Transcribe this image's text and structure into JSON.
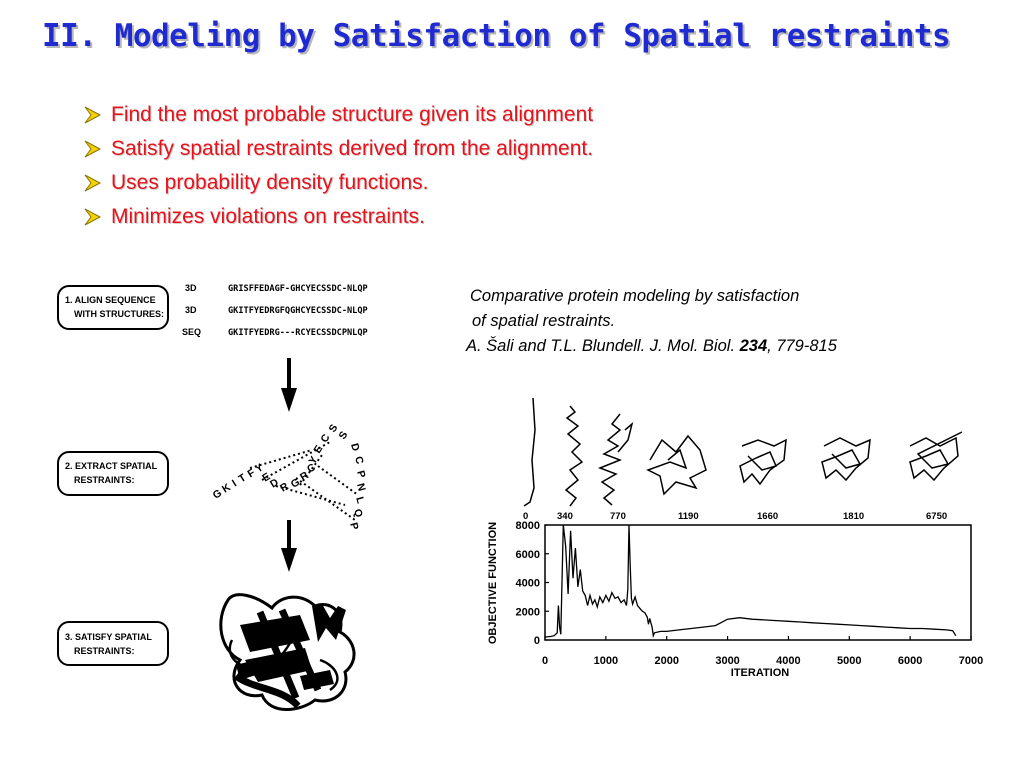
{
  "title": "II. Modeling by Satisfaction of Spatial restraints",
  "bullets": [
    "Find the most probable structure given its alignment",
    "Satisfy spatial restraints derived from the alignment.",
    "Uses  probability density functions.",
    "Minimizes violations on restraints."
  ],
  "citation": {
    "line1": "Comparative protein modeling by satisfaction",
    "line2": "of spatial restraints.",
    "line3_prefix": "A. Šali and T.L. Blundell. J. Mol. Biol. ",
    "volume": "234",
    "pages": ", 779-815"
  },
  "steps": [
    {
      "line1": "1. ALIGN SEQUENCE",
      "line2": "WITH STRUCTURES:"
    },
    {
      "line1": "2. EXTRACT SPATIAL",
      "line2": "RESTRAINTS:"
    },
    {
      "line1": "3. SATISFY SPATIAL",
      "line2": "RESTRAINTS:"
    }
  ],
  "alignment": [
    {
      "label": "3D",
      "sequence": "GRISFFEDAGF-GHCYECSSDC-NLQP"
    },
    {
      "label": "3D",
      "sequence": "GKITFYEDRGFQGHCYECSSDC-NLQP"
    },
    {
      "label": "SEQ",
      "sequence": "GKITFYEDRG---RCYECSSDCPNLQP"
    }
  ],
  "restraint_chain": "GKITFYEDRGRCYECSSDCPNLQP",
  "snapshot_iterations": [
    "0",
    "340",
    "770",
    "1190",
    "1660",
    "1810",
    "6750"
  ],
  "chart_data": {
    "type": "line",
    "xlabel": "ITERATION",
    "ylabel": "OBJECTIVE FUNCTION",
    "xlim": [
      0,
      7000
    ],
    "ylim": [
      0,
      8000
    ],
    "xticks": [
      "0",
      "1000",
      "2000",
      "3000",
      "4000",
      "5000",
      "6000",
      "7000"
    ],
    "yticks": [
      "0",
      "2000",
      "4000",
      "6000",
      "8000"
    ],
    "series": [
      {
        "x": [
          0,
          100,
          150,
          200,
          220,
          240,
          260,
          300,
          340,
          380,
          420,
          460,
          500,
          540,
          580,
          620,
          660,
          700,
          740,
          780,
          820,
          860,
          900,
          950,
          1000,
          1050,
          1100,
          1150,
          1200,
          1250,
          1300,
          1340,
          1360,
          1380,
          1400,
          1420,
          1440,
          1480,
          1520,
          1560,
          1600,
          1640,
          1680,
          1700,
          1720,
          1760,
          1780,
          1800,
          1900,
          2000,
          2200,
          2400,
          2600,
          2800,
          3000,
          3200,
          3400,
          3600,
          3800,
          4000,
          4200,
          4400,
          4600,
          4800,
          5000,
          5200,
          5400,
          5600,
          5800,
          6000,
          6200,
          6400,
          6600,
          6700,
          6750
        ],
        "values": [
          200,
          250,
          300,
          500,
          2400,
          900,
          400,
          8000,
          6500,
          3200,
          7600,
          4300,
          6400,
          3700,
          4900,
          3400,
          3100,
          2400,
          3100,
          2500,
          2800,
          2300,
          3000,
          2600,
          3100,
          2700,
          3300,
          2900,
          3000,
          2600,
          2800,
          2400,
          3500,
          8000,
          5200,
          2900,
          2500,
          3000,
          2400,
          2200,
          2000,
          1900,
          1600,
          1100,
          1500,
          900,
          300,
          500,
          600,
          600,
          700,
          800,
          900,
          1000,
          1450,
          1550,
          1450,
          1400,
          1350,
          1300,
          1250,
          1200,
          1150,
          1100,
          1050,
          1000,
          950,
          900,
          850,
          800,
          800,
          750,
          700,
          650,
          300
        ]
      }
    ]
  }
}
